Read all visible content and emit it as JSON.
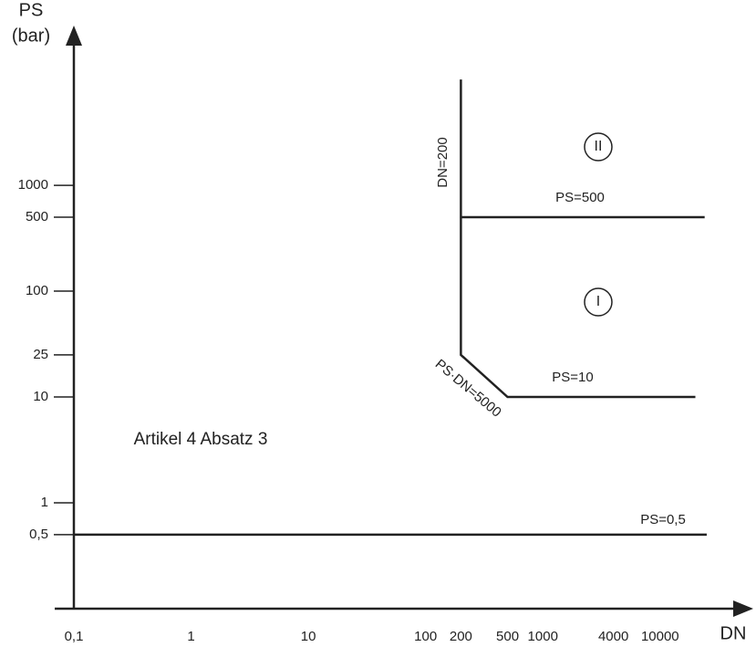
{
  "chart_data": {
    "type": "line",
    "x_label": "DN",
    "y_label": "PS",
    "y_label_unit": "(bar)",
    "log_x": true,
    "log_y": true,
    "xlim": [
      0.1,
      56000
    ],
    "ylim": [
      0.1,
      24000
    ],
    "xticks": [
      {
        "value": 0.1,
        "label": "0,1"
      },
      1,
      10,
      100,
      200,
      500,
      1000,
      4000,
      10000
    ],
    "yticks": [
      {
        "value": 0.5,
        "label": "0,5"
      },
      1,
      10,
      25,
      100,
      500,
      1000
    ],
    "color": "#222222",
    "series": [
      {
        "x": [
          200,
          200,
          500,
          20000
        ],
        "values": [
          10000,
          25,
          10,
          10
        ]
      },
      {
        "x": [
          200,
          24000
        ],
        "values": [
          500,
          500
        ]
      },
      {
        "x": [
          0.1,
          25000
        ],
        "values": [
          0.5,
          0.5
        ]
      }
    ],
    "annotations": [
      "DN=200",
      "PS=500",
      "PS=10",
      "PS·DN=5000",
      "PS=0,5",
      "Artikel 4 Absatz 3",
      "II",
      "I"
    ]
  }
}
